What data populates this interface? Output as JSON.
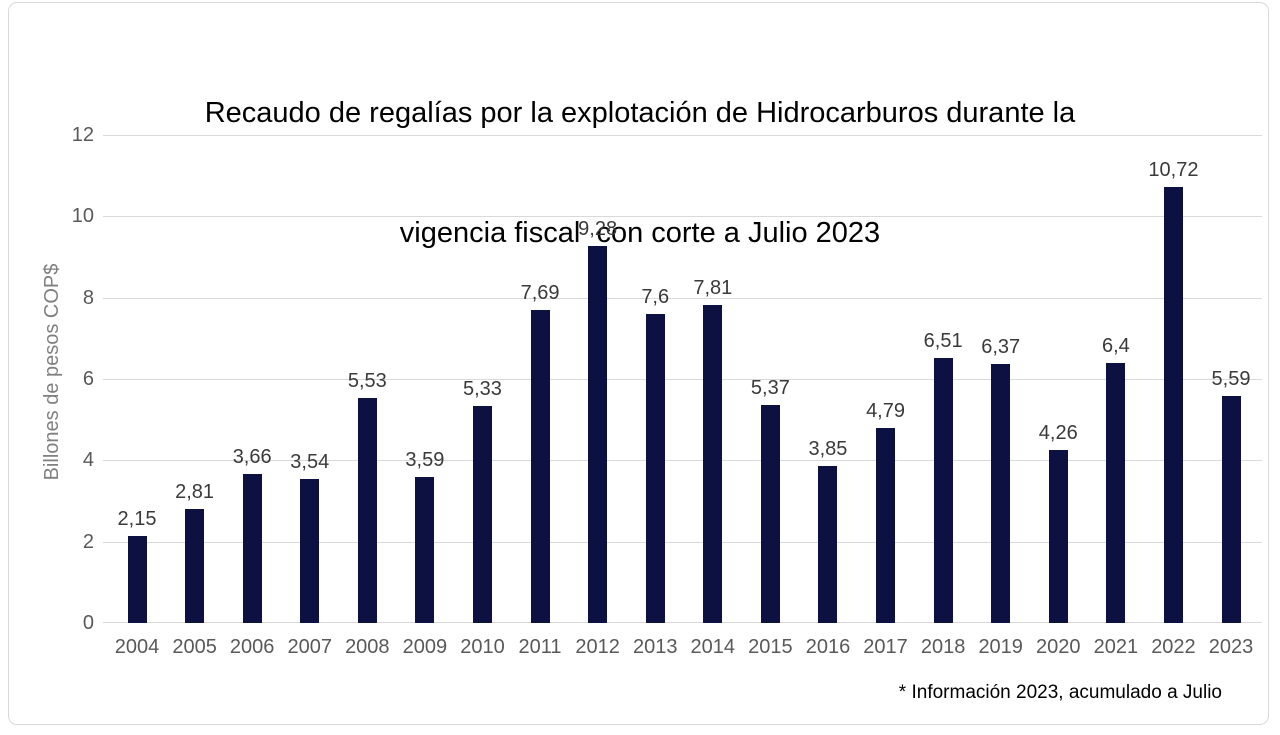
{
  "chart": {
    "title_lines": [
      "Recaudo de regalías por la explotación de Hidrocarburos durante la",
      "vigencia fiscal  con corte a Julio 2023"
    ],
    "y_axis_title": "Billones de pesos COP$",
    "footnote": "* Información 2023, acumulado a Julio"
  },
  "chart_data": {
    "type": "bar",
    "title": "Recaudo de regalías por la explotación de Hidrocarburos durante la vigencia fiscal  con corte a Julio 2023",
    "xlabel": "",
    "ylabel": "Billones de pesos COP$",
    "categories": [
      "2004",
      "2005",
      "2006",
      "2007",
      "2008",
      "2009",
      "2010",
      "2011",
      "2012",
      "2013",
      "2014",
      "2015",
      "2016",
      "2017",
      "2018",
      "2019",
      "2020",
      "2021",
      "2022",
      "2023"
    ],
    "values": [
      2.15,
      2.81,
      3.66,
      3.54,
      5.53,
      3.59,
      5.33,
      7.69,
      9.28,
      7.6,
      7.81,
      5.37,
      3.85,
      4.79,
      6.51,
      6.37,
      4.26,
      6.4,
      10.72,
      5.59
    ],
    "value_labels": [
      "2,15",
      "2,81",
      "3,66",
      "3,54",
      "5,53",
      "3,59",
      "5,33",
      "7,69",
      "9,28",
      "7,6",
      "7,81",
      "5,37",
      "3,85",
      "4,79",
      "6,51",
      "6,37",
      "4,26",
      "6,4",
      "10,72",
      "5,59"
    ],
    "ylim": [
      0,
      12
    ],
    "ytick_step": 2,
    "ytick_labels": [
      "0",
      "2",
      "4",
      "6",
      "8",
      "10",
      "12"
    ],
    "grid": true,
    "legend": false,
    "annotations": [
      "* Información 2023, acumulado a Julio"
    ]
  },
  "colors": {
    "bar": "#0c1142",
    "gridline": "#d9d9d9",
    "axis_label": "#595959",
    "y_axis_title": "#7f7f7f",
    "data_label": "#3a3a3a",
    "title": "#000000",
    "frame_border": "#d9d9d9",
    "background": "#ffffff"
  }
}
